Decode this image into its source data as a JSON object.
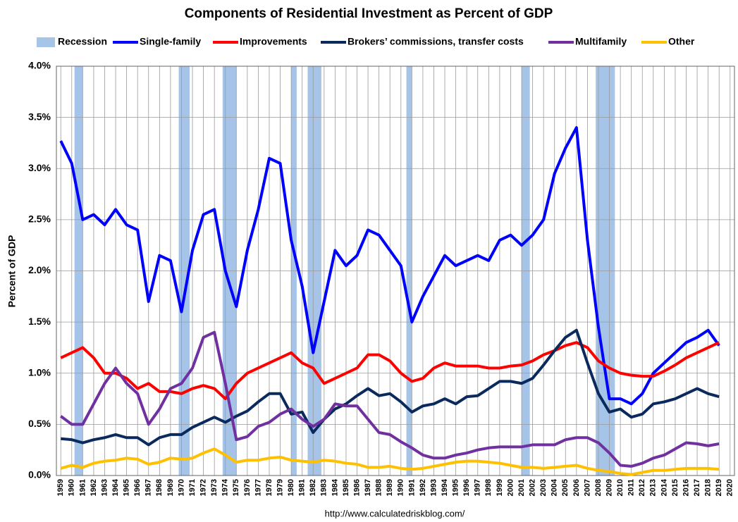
{
  "chart_data": {
    "type": "line",
    "title": "Components of Residential Investment as Percent of GDP",
    "y_label": "Percent of GDP",
    "source": "http://www.calculatedriskblog.com/",
    "x": [
      1959,
      1960,
      1961,
      1962,
      1963,
      1964,
      1965,
      1966,
      1967,
      1968,
      1969,
      1970,
      1971,
      1972,
      1973,
      1974,
      1975,
      1976,
      1977,
      1978,
      1979,
      1980,
      1981,
      1982,
      1983,
      1984,
      1985,
      1986,
      1987,
      1988,
      1989,
      1990,
      1991,
      1992,
      1993,
      1994,
      1995,
      1996,
      1997,
      1998,
      1999,
      2000,
      2001,
      2002,
      2003,
      2004,
      2005,
      2006,
      2007,
      2008,
      2009,
      2010,
      2011,
      2012,
      2013,
      2014,
      2015,
      2016,
      2017,
      2018,
      2019
    ],
    "xlim": [
      1958.6,
      2020.4
    ],
    "xticks": [
      1959,
      1960,
      1961,
      1962,
      1963,
      1964,
      1965,
      1966,
      1967,
      1968,
      1969,
      1970,
      1971,
      1972,
      1973,
      1974,
      1975,
      1976,
      1977,
      1978,
      1979,
      1980,
      1981,
      1982,
      1983,
      1984,
      1985,
      1986,
      1987,
      1988,
      1989,
      1990,
      1991,
      1992,
      1993,
      1994,
      1995,
      1996,
      1997,
      1998,
      1999,
      2000,
      2001,
      2002,
      2003,
      2004,
      2005,
      2006,
      2007,
      2008,
      2009,
      2010,
      2011,
      2012,
      2013,
      2014,
      2015,
      2016,
      2017,
      2018,
      2019,
      2020
    ],
    "ylim": [
      0,
      4
    ],
    "yticks": [
      {
        "value": 0,
        "label": "0.0%"
      },
      {
        "value": 0.5,
        "label": "0.5%"
      },
      {
        "value": 1,
        "label": "1.0%"
      },
      {
        "value": 1.5,
        "label": "1.5%"
      },
      {
        "value": 2,
        "label": "2.0%"
      },
      {
        "value": 2.5,
        "label": "2.5%"
      },
      {
        "value": 3,
        "label": "3.0%"
      },
      {
        "value": 3.5,
        "label": "3.5%"
      },
      {
        "value": 4,
        "label": "4.0%"
      }
    ],
    "grid": true,
    "recessions": {
      "name": "Recession",
      "color": "#a6c4e8",
      "periods": [
        [
          1960.25,
          1961.0
        ],
        [
          1969.75,
          1970.75
        ],
        [
          1973.75,
          1975.0
        ],
        [
          1980.0,
          1980.5
        ],
        [
          1981.5,
          1982.75
        ],
        [
          1990.5,
          1991.0
        ],
        [
          2001.0,
          2001.75
        ],
        [
          2007.75,
          2009.5
        ]
      ]
    },
    "series": [
      {
        "name": "Single-family",
        "color": "#0000ff",
        "values": [
          3.27,
          3.05,
          2.5,
          2.55,
          2.45,
          2.6,
          2.45,
          2.4,
          1.7,
          2.15,
          2.1,
          1.6,
          2.2,
          2.55,
          2.6,
          2.0,
          1.65,
          2.2,
          2.6,
          3.1,
          3.05,
          2.3,
          1.85,
          1.2,
          1.7,
          2.2,
          2.05,
          2.15,
          2.4,
          2.35,
          2.2,
          2.05,
          1.5,
          1.75,
          1.95,
          2.15,
          2.05,
          2.1,
          2.15,
          2.1,
          2.3,
          2.35,
          2.25,
          2.35,
          2.5,
          2.95,
          3.2,
          3.4,
          2.3,
          1.45,
          0.75,
          0.75,
          0.7,
          0.8,
          1.0,
          1.1,
          1.2,
          1.3,
          1.35,
          1.42,
          1.27
        ]
      },
      {
        "name": "Improvements",
        "color": "#ff0000",
        "values": [
          1.15,
          1.2,
          1.25,
          1.15,
          1.0,
          1.0,
          0.95,
          0.85,
          0.9,
          0.82,
          0.82,
          0.8,
          0.85,
          0.88,
          0.85,
          0.75,
          0.9,
          1.0,
          1.05,
          1.1,
          1.15,
          1.2,
          1.1,
          1.05,
          0.9,
          0.95,
          1.0,
          1.05,
          1.18,
          1.18,
          1.12,
          1.0,
          0.92,
          0.95,
          1.05,
          1.1,
          1.07,
          1.07,
          1.07,
          1.05,
          1.05,
          1.07,
          1.08,
          1.12,
          1.18,
          1.22,
          1.27,
          1.3,
          1.25,
          1.12,
          1.05,
          1.0,
          0.98,
          0.97,
          0.97,
          1.02,
          1.08,
          1.15,
          1.2,
          1.25,
          1.3
        ]
      },
      {
        "name": "Brokers’ commissions, transfer costs",
        "color": "#0a2a5e",
        "values": [
          0.36,
          0.35,
          0.32,
          0.35,
          0.37,
          0.4,
          0.37,
          0.37,
          0.3,
          0.37,
          0.4,
          0.4,
          0.47,
          0.52,
          0.57,
          0.52,
          0.58,
          0.63,
          0.72,
          0.8,
          0.8,
          0.6,
          0.62,
          0.42,
          0.55,
          0.65,
          0.7,
          0.78,
          0.85,
          0.78,
          0.8,
          0.72,
          0.62,
          0.68,
          0.7,
          0.75,
          0.7,
          0.77,
          0.78,
          0.85,
          0.92,
          0.92,
          0.9,
          0.95,
          1.08,
          1.22,
          1.35,
          1.42,
          1.1,
          0.8,
          0.62,
          0.65,
          0.57,
          0.6,
          0.7,
          0.72,
          0.75,
          0.8,
          0.85,
          0.8,
          0.77
        ]
      },
      {
        "name": "Multifamily",
        "color": "#7030a0",
        "values": [
          0.58,
          0.5,
          0.5,
          0.7,
          0.9,
          1.05,
          0.9,
          0.8,
          0.5,
          0.65,
          0.85,
          0.9,
          1.05,
          1.35,
          1.4,
          0.9,
          0.35,
          0.38,
          0.48,
          0.52,
          0.6,
          0.65,
          0.55,
          0.48,
          0.55,
          0.7,
          0.68,
          0.68,
          0.55,
          0.42,
          0.4,
          0.33,
          0.27,
          0.2,
          0.17,
          0.17,
          0.2,
          0.22,
          0.25,
          0.27,
          0.28,
          0.28,
          0.28,
          0.3,
          0.3,
          0.3,
          0.35,
          0.37,
          0.37,
          0.32,
          0.22,
          0.1,
          0.09,
          0.12,
          0.17,
          0.2,
          0.26,
          0.32,
          0.31,
          0.29,
          0.31
        ]
      },
      {
        "name": "Other",
        "color": "#ffc000",
        "values": [
          0.07,
          0.1,
          0.08,
          0.12,
          0.14,
          0.15,
          0.17,
          0.16,
          0.11,
          0.13,
          0.17,
          0.16,
          0.17,
          0.22,
          0.26,
          0.2,
          0.13,
          0.15,
          0.15,
          0.17,
          0.18,
          0.15,
          0.14,
          0.13,
          0.15,
          0.14,
          0.12,
          0.11,
          0.08,
          0.08,
          0.09,
          0.07,
          0.06,
          0.07,
          0.09,
          0.11,
          0.13,
          0.14,
          0.14,
          0.13,
          0.12,
          0.1,
          0.08,
          0.08,
          0.07,
          0.08,
          0.09,
          0.1,
          0.07,
          0.05,
          0.04,
          0.02,
          0.01,
          0.03,
          0.05,
          0.05,
          0.06,
          0.07,
          0.07,
          0.07,
          0.06
        ]
      }
    ]
  }
}
